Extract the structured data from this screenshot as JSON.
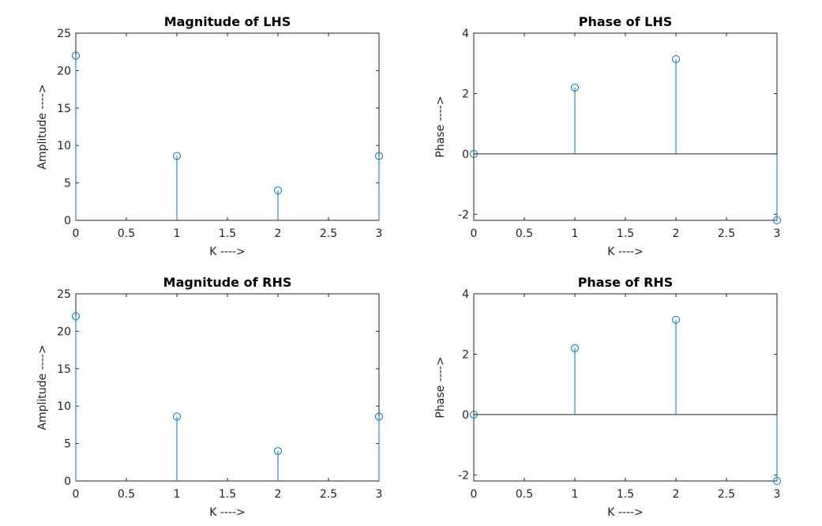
{
  "chart_data": [
    {
      "type": "stem",
      "title": "Magnitude of LHS",
      "xlabel": "K ---->",
      "ylabel": "Amplitude ---->",
      "xlim": [
        0,
        3
      ],
      "ylim": [
        0,
        25
      ],
      "xticks": [
        "0",
        "0.5",
        "1",
        "1.5",
        "2",
        "2.5",
        "3"
      ],
      "yticks": [
        "0",
        "5",
        "10",
        "15",
        "20",
        "25"
      ],
      "x": [
        0,
        1,
        2,
        3
      ],
      "values": [
        22,
        8.6,
        4,
        8.6
      ],
      "baseline": false,
      "color": "#0072BD"
    },
    {
      "type": "stem",
      "title": "Phase of LHS",
      "xlabel": "K ---->",
      "ylabel": "Phase ---->",
      "xlim": [
        0,
        3
      ],
      "ylim": [
        -2.2,
        4
      ],
      "xticks": [
        "0",
        "0.5",
        "1",
        "1.5",
        "2",
        "2.5",
        "3"
      ],
      "yticks": [
        "-2",
        "0",
        "2",
        "4"
      ],
      "x": [
        0,
        1,
        2,
        3
      ],
      "values": [
        0,
        2.2,
        3.14,
        -2.2
      ],
      "baseline": true,
      "color": "#0072BD"
    },
    {
      "type": "stem",
      "title": "Magnitude of RHS",
      "xlabel": "K ---->",
      "ylabel": "Amplitude ---->",
      "xlim": [
        0,
        3
      ],
      "ylim": [
        0,
        25
      ],
      "xticks": [
        "0",
        "0.5",
        "1",
        "1.5",
        "2",
        "2.5",
        "3"
      ],
      "yticks": [
        "0",
        "5",
        "10",
        "15",
        "20",
        "25"
      ],
      "x": [
        0,
        1,
        2,
        3
      ],
      "values": [
        22,
        8.6,
        4,
        8.6
      ],
      "baseline": false,
      "color": "#0072BD"
    },
    {
      "type": "stem",
      "title": "Phase of RHS",
      "xlabel": "K ---->",
      "ylabel": "Phase ---->",
      "xlim": [
        0,
        3
      ],
      "ylim": [
        -2.2,
        4
      ],
      "xticks": [
        "0",
        "0.5",
        "1",
        "1.5",
        "2",
        "2.5",
        "3"
      ],
      "yticks": [
        "-2",
        "0",
        "2",
        "4"
      ],
      "x": [
        0,
        1,
        2,
        3
      ],
      "values": [
        0,
        2.2,
        3.14,
        -2.2
      ],
      "baseline": true,
      "color": "#0072BD"
    }
  ]
}
